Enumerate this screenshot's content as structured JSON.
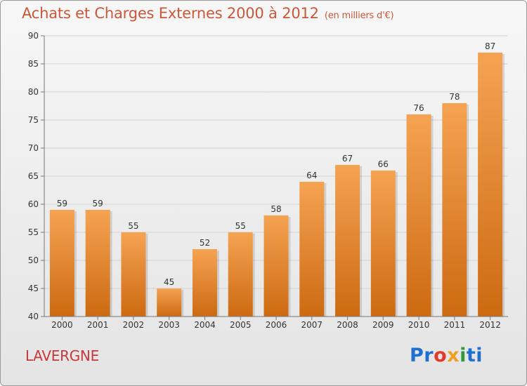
{
  "title": "Achats et Charges Externes 2000 à 2012",
  "subtitle": "(en milliers d'€)",
  "place": "LAVERGNE",
  "logo": {
    "p1": "Pr",
    "p2": "o",
    "p3": "x",
    "p4": "i",
    "p5": "ti"
  },
  "colors": {
    "bar_top": "#f5a352",
    "bar_bottom": "#cd6a12",
    "title": "#c8583a",
    "place": "#c8383a"
  },
  "chart_data": {
    "type": "bar",
    "categories": [
      "2000",
      "2001",
      "2002",
      "2003",
      "2004",
      "2005",
      "2006",
      "2007",
      "2008",
      "2009",
      "2010",
      "2011",
      "2012"
    ],
    "values": [
      59,
      59,
      55,
      45,
      52,
      55,
      58,
      64,
      67,
      66,
      76,
      78,
      87
    ],
    "ylim": [
      40,
      90
    ],
    "yticks": [
      40,
      45,
      50,
      55,
      60,
      65,
      70,
      75,
      80,
      85,
      90
    ],
    "grid": true,
    "title": "Achats et Charges Externes 2000 à 2012",
    "subtitle": "(en milliers d'€)"
  }
}
